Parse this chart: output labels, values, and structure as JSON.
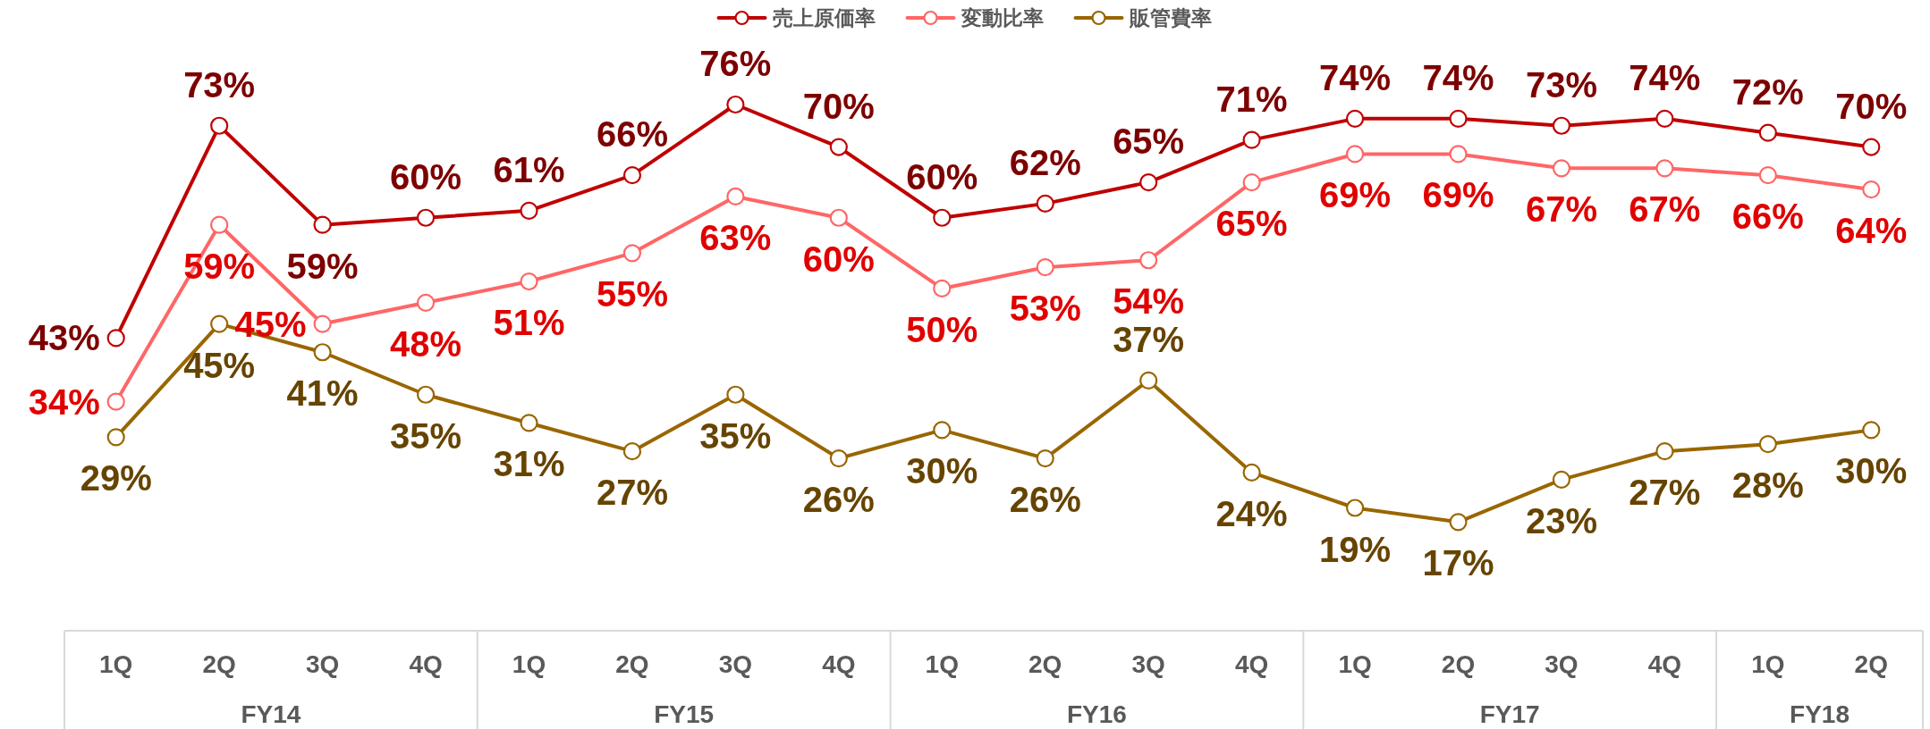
{
  "chart_data": {
    "type": "line",
    "categories": [
      "1Q",
      "2Q",
      "3Q",
      "4Q",
      "1Q",
      "2Q",
      "3Q",
      "4Q",
      "1Q",
      "2Q",
      "3Q",
      "4Q",
      "1Q",
      "2Q",
      "3Q",
      "4Q",
      "1Q",
      "2Q"
    ],
    "annotations": [
      "FY14",
      "FY15",
      "FY16",
      "FY17",
      "FY18"
    ],
    "series": [
      {
        "name": "売上原価率",
        "color": "#c00000",
        "values": [
          43,
          73,
          59,
          60,
          61,
          66,
          76,
          70,
          60,
          62,
          65,
          71,
          74,
          74,
          73,
          74,
          72,
          70
        ],
        "value_labels": [
          "43%",
          "73%",
          "59%",
          "60%",
          "61%",
          "66%",
          "76%",
          "70%",
          "60%",
          "62%",
          "65%",
          "71%",
          "74%",
          "74%",
          "73%",
          "74%",
          "72%",
          "70%"
        ]
      },
      {
        "name": "変動比率",
        "color": "#ff6666",
        "values": [
          34,
          59,
          45,
          48,
          51,
          55,
          63,
          60,
          50,
          53,
          54,
          65,
          69,
          69,
          67,
          67,
          66,
          64
        ],
        "value_labels": [
          "34%",
          "59%",
          "45%",
          "48%",
          "51%",
          "55%",
          "63%",
          "60%",
          "50%",
          "53%",
          "54%",
          "65%",
          "69%",
          "69%",
          "67%",
          "67%",
          "66%",
          "64%"
        ]
      },
      {
        "name": "販管費率",
        "color": "#996600",
        "values": [
          29,
          45,
          41,
          35,
          31,
          27,
          35,
          26,
          30,
          26,
          37,
          24,
          19,
          17,
          23,
          27,
          28,
          30
        ],
        "value_labels": [
          "29%",
          "45%",
          "41%",
          "35%",
          "31%",
          "27%",
          "35%",
          "26%",
          "30%",
          "26%",
          "37%",
          "24%",
          "19%",
          "17%",
          "23%",
          "27%",
          "28%",
          "30%"
        ]
      }
    ],
    "legend": "top",
    "marker": "circle",
    "line_style": "solid"
  }
}
